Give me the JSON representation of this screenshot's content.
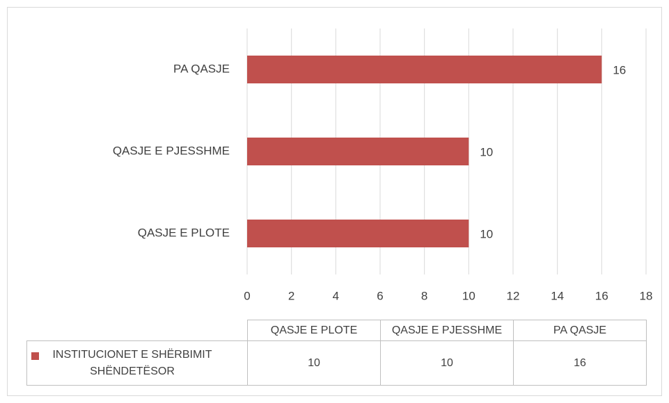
{
  "chart_data": {
    "type": "barh",
    "categories": [
      "QASJE E PLOTE",
      "QASJE E PJESSHME",
      "PA QASJE"
    ],
    "series": [
      {
        "name": "INSTITUCIONET E SHËRBIMIT SHËNDETËSOR",
        "color": "#c0504d",
        "values": [
          10,
          10,
          16
        ]
      }
    ],
    "xlim": [
      0,
      18
    ],
    "xticks": [
      0,
      2,
      4,
      6,
      8,
      10,
      12,
      14,
      16,
      18
    ],
    "grid": true,
    "data_table": true
  }
}
